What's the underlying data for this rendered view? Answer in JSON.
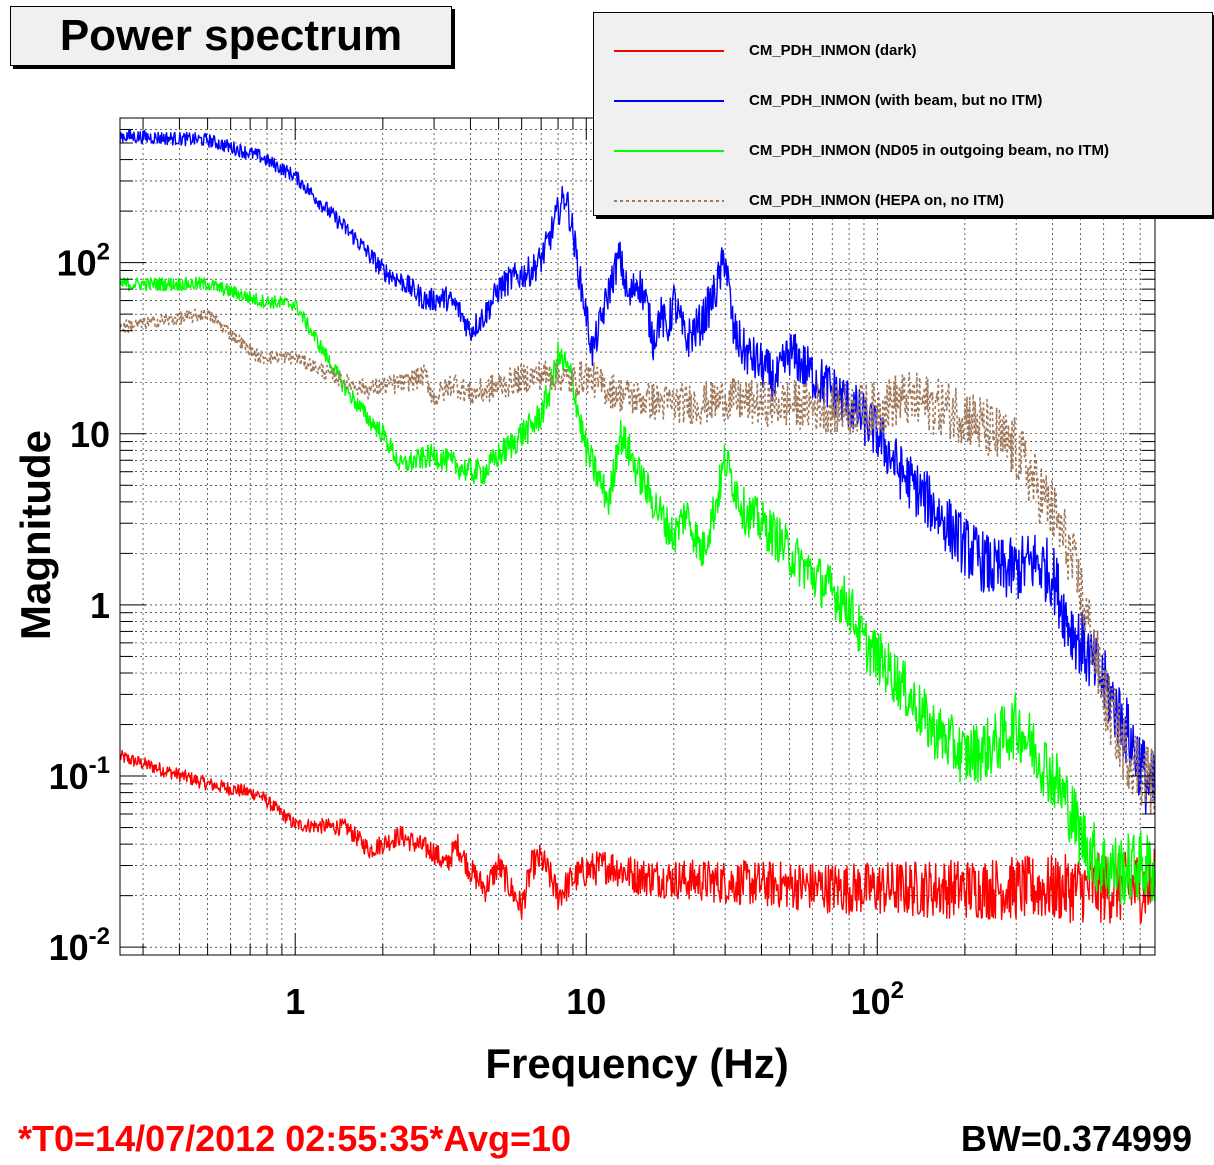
{
  "title": "Power spectrum",
  "footer": {
    "timestamp": "*T0=14/07/2012 02:55:35*Avg=10",
    "bandwidth": "BW=0.374999"
  },
  "legend": [
    {
      "label": "CM_PDH_INMON (dark)",
      "color": "#ff0000",
      "dash": "solid"
    },
    {
      "label": "CM_PDH_INMON (with beam, but no ITM)",
      "color": "#0000ff",
      "dash": "solid"
    },
    {
      "label": "CM_PDH_INMON (ND05 in outgoing beam, no ITM)",
      "color": "#00ff00",
      "dash": "solid"
    },
    {
      "label": "CM_PDH_INMON (HEPA on, no ITM)",
      "color": "#a0785a",
      "dash": "dotted"
    }
  ],
  "chart_data": {
    "type": "line",
    "title": "Power spectrum",
    "xlabel": "Frequency (Hz)",
    "ylabel": "Magnitude",
    "xscale": "log",
    "yscale": "log",
    "xlim": [
      0.25,
      900
    ],
    "ylim": [
      0.009,
      700
    ],
    "grid": true,
    "legend_position": "top-right",
    "x_ticks": [
      {
        "value": 1,
        "base": "1",
        "exp": ""
      },
      {
        "value": 10,
        "base": "10",
        "exp": ""
      },
      {
        "value": 100,
        "base": "10",
        "exp": "2"
      }
    ],
    "y_ticks": [
      {
        "value": 0.01,
        "base": "10",
        "exp": "-2"
      },
      {
        "value": 0.1,
        "base": "10",
        "exp": "-1"
      },
      {
        "value": 1,
        "base": "1",
        "exp": ""
      },
      {
        "value": 10,
        "base": "10",
        "exp": ""
      },
      {
        "value": 100,
        "base": "10",
        "exp": "2"
      }
    ],
    "series": [
      {
        "name": "CM_PDH_INMON (dark)",
        "color": "#ff0000",
        "dash": "solid",
        "x": [
          0.25,
          0.5,
          0.75,
          1.0,
          1.5,
          1.8,
          2.3,
          2.6,
          3.0,
          3.3,
          3.6,
          4.0,
          4.5,
          5.0,
          5.5,
          6.0,
          6.5,
          7.0,
          7.5,
          8.0,
          9.0,
          10,
          12,
          15,
          20,
          30,
          50,
          80,
          120,
          200,
          300,
          500,
          700,
          900
        ],
        "y": [
          0.13,
          0.09,
          0.078,
          0.052,
          0.05,
          0.037,
          0.045,
          0.04,
          0.036,
          0.03,
          0.04,
          0.028,
          0.022,
          0.03,
          0.022,
          0.017,
          0.03,
          0.033,
          0.026,
          0.02,
          0.025,
          0.028,
          0.03,
          0.026,
          0.025,
          0.024,
          0.023,
          0.022,
          0.022,
          0.022,
          0.022,
          0.022,
          0.022,
          0.023
        ]
      },
      {
        "name": "CM_PDH_INMON (with beam, but no ITM)",
        "color": "#0000ff",
        "dash": "solid",
        "x": [
          0.25,
          0.5,
          0.75,
          1.0,
          1.3,
          1.6,
          2.0,
          2.4,
          2.8,
          3.3,
          3.6,
          4.0,
          4.5,
          5.0,
          5.5,
          6.0,
          6.5,
          7.0,
          7.5,
          8.0,
          8.5,
          9.0,
          9.5,
          10,
          10.5,
          11,
          12,
          13,
          14,
          15,
          16,
          17,
          18,
          19,
          20,
          22,
          25,
          28,
          30,
          32,
          35,
          40,
          45,
          50,
          60,
          70,
          80,
          100,
          120,
          150,
          200,
          250,
          300,
          350,
          400,
          450,
          500,
          600,
          700,
          800,
          850,
          900
        ],
        "y": [
          550,
          520,
          420,
          320,
          200,
          140,
          90,
          75,
          60,
          62,
          55,
          40,
          50,
          70,
          80,
          85,
          90,
          105,
          140,
          200,
          250,
          150,
          80,
          50,
          30,
          40,
          70,
          110,
          60,
          80,
          60,
          35,
          50,
          40,
          60,
          35,
          45,
          70,
          110,
          40,
          30,
          25,
          20,
          30,
          22,
          18,
          15,
          10,
          6,
          4,
          2.2,
          1.6,
          1.6,
          1.8,
          1.5,
          0.8,
          0.6,
          0.35,
          0.2,
          0.12,
          0.09,
          0.08
        ]
      },
      {
        "name": "CM_PDH_INMON (ND05 in outgoing beam, no ITM)",
        "color": "#00ff00",
        "dash": "solid",
        "x": [
          0.25,
          0.5,
          0.75,
          1.0,
          1.5,
          1.8,
          2.0,
          2.3,
          2.6,
          3.0,
          3.6,
          4.0,
          4.5,
          5.0,
          5.5,
          6.0,
          6.5,
          7.0,
          7.5,
          8.0,
          8.5,
          9.0,
          9.5,
          10,
          11,
          12,
          13,
          14,
          15,
          17,
          20,
          22,
          25,
          28,
          30,
          35,
          40,
          45,
          50,
          60,
          70,
          80,
          90,
          100,
          120,
          150,
          200,
          250,
          300,
          350,
          400,
          450,
          500,
          550,
          600,
          700,
          800,
          900
        ],
        "y": [
          75,
          75,
          60,
          57,
          18,
          12,
          10,
          6.5,
          7,
          7.5,
          6.5,
          6,
          6,
          7.5,
          8.5,
          10,
          11,
          13,
          18,
          28,
          25,
          20,
          12,
          8,
          5.5,
          4,
          10,
          8,
          6,
          4,
          2.5,
          3.5,
          2,
          4,
          7,
          3.5,
          3,
          2.5,
          2,
          1.5,
          1.2,
          1.0,
          0.6,
          0.5,
          0.35,
          0.2,
          0.13,
          0.15,
          0.2,
          0.14,
          0.1,
          0.07,
          0.045,
          0.035,
          0.03,
          0.028,
          0.03,
          0.028
        ]
      },
      {
        "name": "CM_PDH_INMON (HEPA on, no ITM)",
        "color": "#a0785a",
        "dash": "dotted",
        "x": [
          0.25,
          0.5,
          0.75,
          1.0,
          1.5,
          1.8,
          2.0,
          2.4,
          2.8,
          3.0,
          3.5,
          4.0,
          4.5,
          5.0,
          5.5,
          6.0,
          7.0,
          8.0,
          9.0,
          10,
          12,
          15,
          20,
          25,
          30,
          40,
          50,
          70,
          100,
          120,
          150,
          200,
          250,
          300,
          350,
          400,
          450,
          500,
          550,
          600,
          700,
          800,
          900
        ],
        "y": [
          42,
          50,
          28,
          28,
          20,
          18,
          19,
          20,
          22,
          16,
          20,
          17,
          18,
          19,
          20,
          21,
          22,
          22,
          20,
          22,
          18,
          16,
          15,
          15,
          16,
          15,
          15,
          14,
          14,
          16,
          15,
          13,
          10,
          8,
          5,
          3.5,
          2.2,
          1.2,
          0.6,
          0.3,
          0.15,
          0.11,
          0.09
        ]
      }
    ]
  }
}
